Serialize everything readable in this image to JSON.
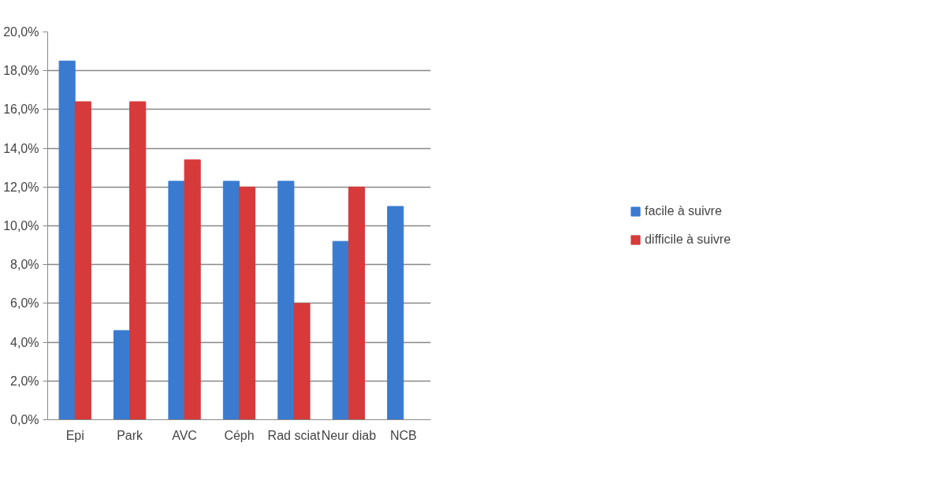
{
  "chart_data": {
    "type": "bar",
    "categories": [
      "Epi",
      "Park",
      "AVC",
      "Céph",
      "Rad sciat",
      "Neur diab",
      "NCB"
    ],
    "series": [
      {
        "name": "facile à suivre",
        "color": "#3a7bd0",
        "values": [
          18.5,
          4.6,
          12.3,
          12.3,
          12.3,
          9.2,
          11.0
        ]
      },
      {
        "name": "difficile à suivre",
        "color": "#d63a3a",
        "values": [
          16.4,
          16.4,
          13.4,
          12.0,
          6.0,
          12.0,
          null
        ]
      }
    ],
    "ylim": [
      0,
      20
    ],
    "yticks": [
      {
        "value": 0,
        "label": "0,0%"
      },
      {
        "value": 2,
        "label": "2,0%"
      },
      {
        "value": 4,
        "label": "4,0%"
      },
      {
        "value": 6,
        "label": "6,0%"
      },
      {
        "value": 8,
        "label": "8,0%"
      },
      {
        "value": 10,
        "label": "10,0%"
      },
      {
        "value": 12,
        "label": "12,0%"
      },
      {
        "value": 14,
        "label": "14,0%"
      },
      {
        "value": 16,
        "label": "16,0%"
      },
      {
        "value": 18,
        "label": "18,0%"
      },
      {
        "value": 20,
        "label": "20,0%"
      }
    ],
    "grid": "y",
    "legend": "right"
  }
}
